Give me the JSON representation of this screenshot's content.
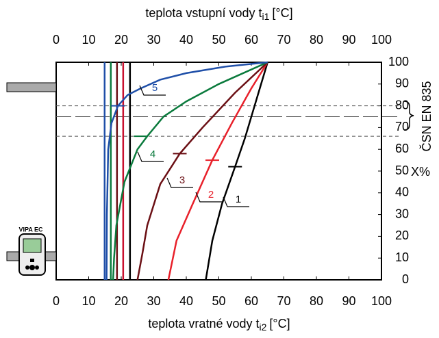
{
  "chart_data": {
    "type": "line",
    "x2_label": "teplota vstupní vody t",
    "x2_label_sub": "i1",
    "x2_label_unit": "[°C]",
    "x_label": "teplota vratné vody t",
    "x_label_sub": "i2",
    "x_label_unit": "[°C]",
    "xlim": [
      0,
      100
    ],
    "xticks": [
      0,
      10,
      20,
      30,
      40,
      50,
      60,
      70,
      80,
      90,
      100
    ],
    "x2ticks": [
      0,
      10,
      20,
      30,
      40,
      50,
      60,
      70,
      80,
      90,
      100
    ],
    "ylim": [
      0,
      100
    ],
    "yticks": [
      0,
      10,
      20,
      30,
      40,
      50,
      60,
      70,
      80,
      90,
      100
    ],
    "y_unit_label": "X%",
    "bracket_label": "ČSN EN 835",
    "device_label": "VIPA EC",
    "ref_lines": [
      80,
      75,
      66
    ],
    "vertical_lines": [
      {
        "color": "#1f4fa8",
        "x": 14.9
      },
      {
        "color": "#0a7a3c",
        "x": 16.8
      },
      {
        "color": "#6b0f14",
        "x": 18.7
      },
      {
        "color": "#c8102e",
        "x": 20.6
      },
      {
        "color": "#000000",
        "x": 22.7
      }
    ],
    "series": [
      {
        "name": "1",
        "color": "#000000",
        "x": [
          46,
          48,
          51,
          55,
          58,
          62,
          65
        ],
        "y": [
          0,
          18,
          35,
          52,
          65,
          85,
          100
        ],
        "marker": {
          "x": 55,
          "y": 52
        }
      },
      {
        "name": "2",
        "color": "#e8202a",
        "x": [
          34.5,
          37,
          42,
          48,
          54,
          60,
          65
        ],
        "y": [
          0,
          18,
          35,
          55,
          72,
          88,
          100
        ],
        "marker": {
          "x": 48,
          "y": 55
        }
      },
      {
        "name": "3",
        "color": "#6b0f14",
        "x": [
          25,
          26.5,
          28,
          32,
          38,
          45,
          55,
          65
        ],
        "y": [
          0,
          12,
          25,
          44,
          58,
          70,
          86,
          100
        ],
        "marker": {
          "x": 38,
          "y": 58
        }
      },
      {
        "name": "4",
        "color": "#0a7a3c",
        "x": [
          17.5,
          17.8,
          18.5,
          21,
          25,
          28,
          33,
          40,
          50,
          65
        ],
        "y": [
          0,
          10,
          25,
          45,
          60,
          66,
          75,
          82,
          90,
          100
        ],
        "marker": {
          "x": 26,
          "y": 66
        }
      },
      {
        "name": "5",
        "color": "#1f4fa8",
        "x": [
          15.5,
          15.6,
          16,
          17,
          19,
          22,
          26,
          32,
          40,
          52,
          65
        ],
        "y": [
          0,
          30,
          60,
          72,
          80,
          85,
          88,
          92,
          95,
          98,
          100
        ],
        "marker": {
          "x": 19,
          "y": 80
        }
      }
    ]
  }
}
